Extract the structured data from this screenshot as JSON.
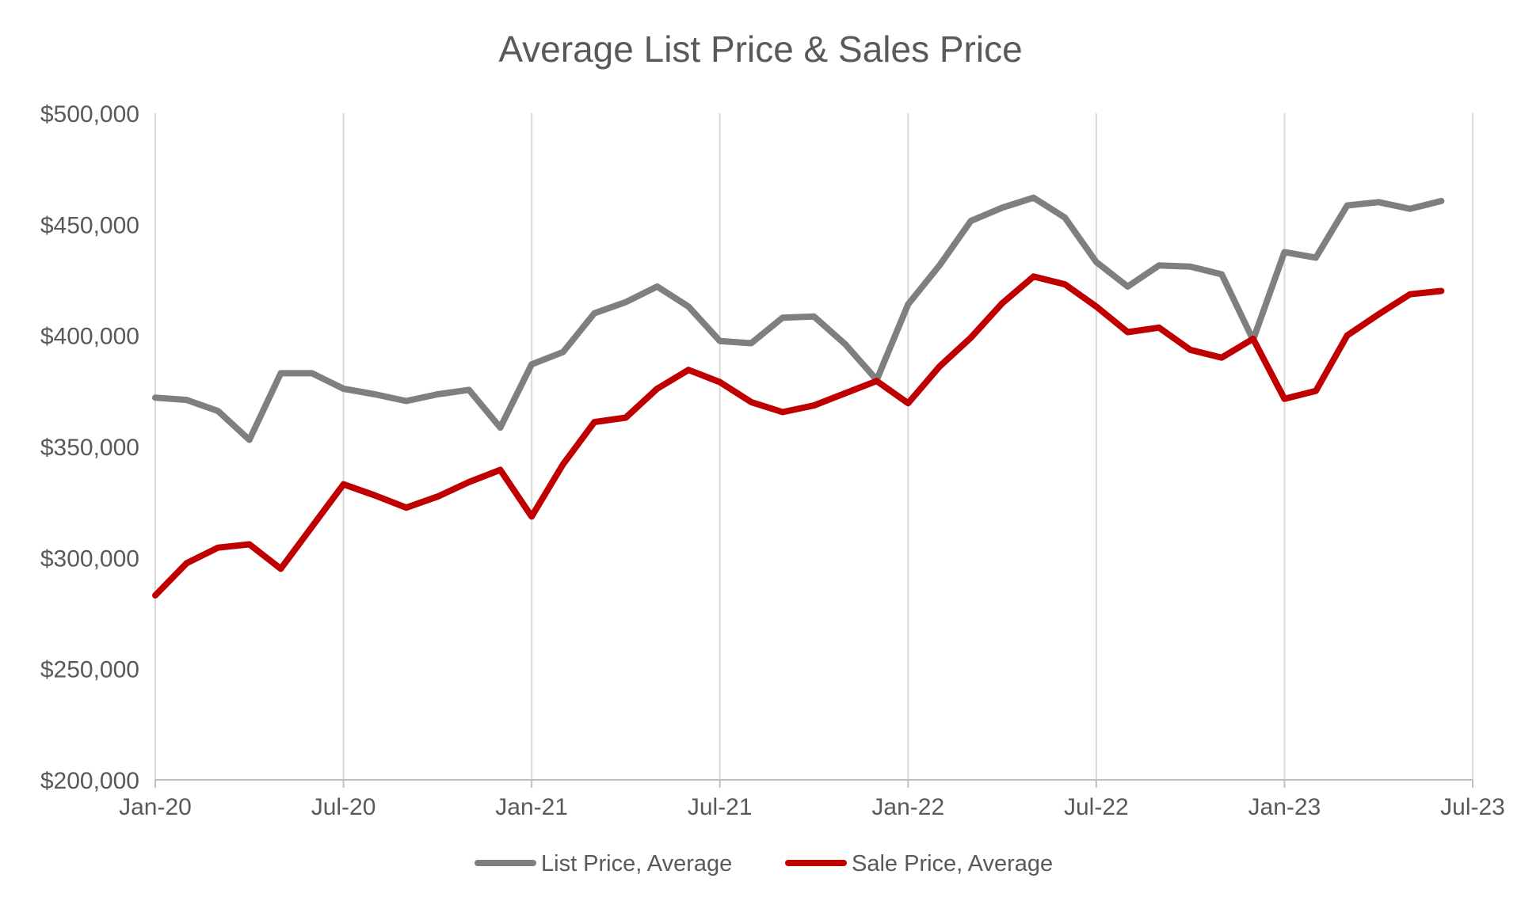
{
  "chart_data": {
    "type": "line",
    "title": "Average List Price & Sales Price",
    "xlabel": "",
    "ylabel": "",
    "ylim": [
      200000,
      500000
    ],
    "ytick_step": 50000,
    "yticks": [
      "$200,000",
      "$250,000",
      "$300,000",
      "$350,000",
      "$400,000",
      "$450,000",
      "$500,000"
    ],
    "xticks": [
      "Jan-20",
      "Jul-20",
      "Jan-21",
      "Jul-21",
      "Jan-22",
      "Jul-22",
      "Jan-23",
      "Jul-23"
    ],
    "x_start": "Jan-20",
    "x_end": "Jul-23",
    "x_months_total": 42,
    "grid": {
      "vertical": true,
      "horizontal": false
    },
    "legend": "bottom",
    "series": [
      {
        "name": "List Price, Average",
        "color": "#7f7f7f",
        "values": [
          372000,
          371000,
          366000,
          353000,
          383000,
          383000,
          376000,
          373500,
          370500,
          373500,
          375500,
          358500,
          387000,
          392500,
          410000,
          415000,
          422000,
          413000,
          397500,
          396500,
          408000,
          408500,
          396000,
          380000,
          414000,
          431500,
          451500,
          457500,
          462000,
          453000,
          433000,
          422000,
          431500,
          431000,
          427500,
          398000,
          437500,
          435000,
          458500,
          460000,
          457000,
          460500
        ]
      },
      {
        "name": "Sale Price, Average",
        "color": "#c00000",
        "values": [
          283000,
          297500,
          304500,
          306000,
          295000,
          314000,
          333000,
          328000,
          322500,
          327500,
          334000,
          339500,
          318500,
          342000,
          361000,
          363000,
          376000,
          384500,
          379000,
          370000,
          365500,
          368500,
          374000,
          379500,
          369500,
          386000,
          399000,
          414500,
          426500,
          423000,
          413000,
          401500,
          403500,
          393500,
          390000,
          398500,
          371500,
          375000,
          400000,
          409500,
          418500,
          420000
        ]
      }
    ]
  }
}
